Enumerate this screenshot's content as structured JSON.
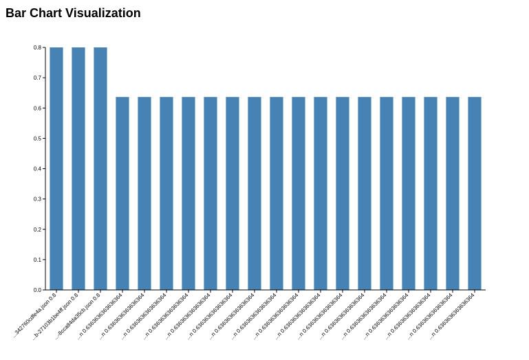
{
  "page": {
    "title": "Bar Chart Visualization"
  },
  "colors": {
    "bar": "#4682b4",
    "axis": "#000000"
  },
  "chart_data": {
    "type": "bar",
    "title": "",
    "xlabel": "",
    "ylabel": "",
    "ylim": [
      0,
      0.8
    ],
    "yticks": [
      "0.0",
      "0.1",
      "0.2",
      "0.3",
      "0.4",
      "0.5",
      "0.6",
      "0.7",
      "0.8"
    ],
    "grid": false,
    "categories": [
      "...342760cdfe4a.json 0.8",
      "...b-27103b1be4ff.json 0.8",
      "...-8cca84da35cb.json 0.8",
      "...n 0.6363636363636364",
      "...n 0.6363636363636364",
      "...n 0.6363636363636364",
      "...n 0.6363636363636364",
      "...n 0.6363636363636364",
      "...n 0.6363636363636364",
      "...n 0.6363636363636364",
      "...n 0.6363636363636364",
      "...n 0.6363636363636364",
      "...n 0.6363636363636364",
      "...n 0.6363636363636364",
      "...n 0.6363636363636364",
      "...n 0.6363636363636364",
      "...n 0.6363636363636364",
      "...n 0.6363636363636364",
      "...n 0.6363636363636364",
      "...n 0.6363636363636364"
    ],
    "values": [
      0.8,
      0.8,
      0.8,
      0.6363636363636364,
      0.6363636363636364,
      0.6363636363636364,
      0.6363636363636364,
      0.6363636363636364,
      0.6363636363636364,
      0.6363636363636364,
      0.6363636363636364,
      0.6363636363636364,
      0.6363636363636364,
      0.6363636363636364,
      0.6363636363636364,
      0.6363636363636364,
      0.6363636363636364,
      0.6363636363636364,
      0.6363636363636364,
      0.6363636363636364
    ]
  }
}
